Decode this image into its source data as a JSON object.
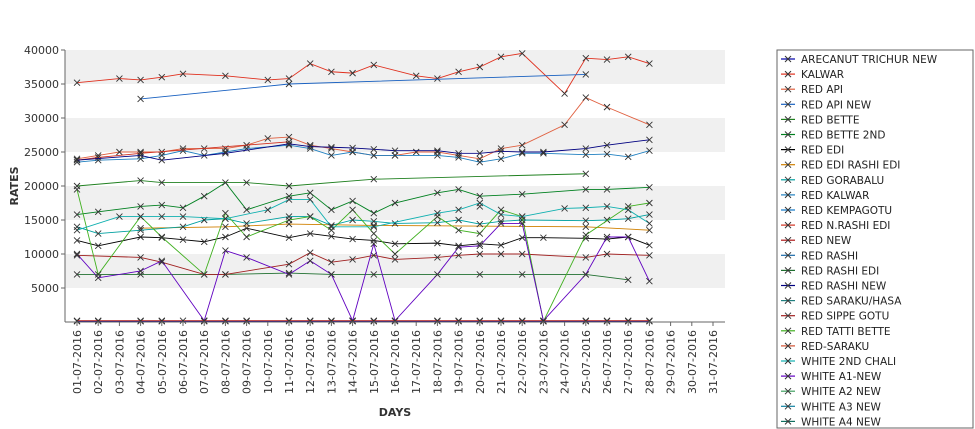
{
  "chart_data": {
    "type": "line",
    "xlabel": "DAYS",
    "ylabel": "RATES",
    "ylim": [
      0,
      40000
    ],
    "yticks": [
      5000,
      10000,
      15000,
      20000,
      25000,
      30000,
      35000,
      40000
    ],
    "grid": "alternating horizontal bands",
    "legend_position": "right",
    "categories": [
      "01-07-2016",
      "02-07-2016",
      "03-07-2016",
      "04-07-2016",
      "05-07-2016",
      "06-07-2016",
      "07-07-2016",
      "08-07-2016",
      "09-07-2016",
      "10-07-2016",
      "11-07-2016",
      "12-07-2016",
      "13-07-2016",
      "14-07-2016",
      "15-07-2016",
      "16-07-2016",
      "17-07-2016",
      "18-07-2016",
      "19-07-2016",
      "20-07-2016",
      "21-07-2016",
      "22-07-2016",
      "23-07-2016",
      "24-07-2016",
      "25-07-2016",
      "26-07-2016",
      "27-07-2016",
      "28-07-2016",
      "29-07-2016",
      "30-07-2016",
      "31-07-2016"
    ],
    "series": [
      {
        "name": "ARECANUT TRICHUR NEW",
        "color": "#0000a8",
        "values": [
          100,
          100,
          null,
          100,
          100,
          null,
          100,
          100,
          100,
          null,
          100,
          100,
          100,
          100,
          100,
          100,
          null,
          100,
          100,
          100,
          100,
          100,
          100,
          null,
          100,
          100,
          100,
          100,
          null,
          null,
          null
        ]
      },
      {
        "name": "KALWAR",
        "color": "#e0301e",
        "values": [
          35200,
          null,
          35800,
          35600,
          36000,
          36500,
          null,
          36200,
          null,
          35600,
          35800,
          38000,
          36800,
          36600,
          37800,
          null,
          36200,
          35800,
          36800,
          37500,
          39000,
          39500,
          null,
          33600,
          38800,
          38600,
          39000,
          38000,
          null,
          null,
          null
        ]
      },
      {
        "name": "RED API",
        "color": "#e06040",
        "values": [
          24000,
          24500,
          25000,
          25000,
          25000,
          25500,
          25500,
          25500,
          26000,
          27000,
          27200,
          26000,
          25500,
          25000,
          24500,
          24500,
          25000,
          25000,
          24500,
          24000,
          25500,
          26000,
          null,
          29000,
          33000,
          31600,
          null,
          29000,
          null,
          null,
          null
        ]
      },
      {
        "name": "RED API NEW",
        "color": "#1860c0",
        "values": [
          null,
          null,
          null,
          32800,
          null,
          null,
          null,
          null,
          null,
          null,
          35000,
          null,
          null,
          null,
          null,
          null,
          null,
          null,
          null,
          null,
          null,
          null,
          null,
          null,
          36400,
          null,
          null,
          null,
          null,
          null,
          null
        ]
      },
      {
        "name": "RED BETTE",
        "color": "#208020",
        "values": [
          20000,
          null,
          null,
          20800,
          20500,
          null,
          null,
          null,
          20500,
          null,
          20000,
          null,
          null,
          null,
          21000,
          null,
          null,
          null,
          null,
          null,
          null,
          null,
          null,
          null,
          21800,
          null,
          null,
          null,
          null,
          null,
          null
        ]
      },
      {
        "name": "RED BETTE 2ND",
        "color": "#008020",
        "values": [
          15800,
          16200,
          null,
          17000,
          17200,
          16800,
          18500,
          20500,
          16500,
          null,
          18500,
          19000,
          16500,
          17800,
          16000,
          17500,
          null,
          19000,
          19500,
          18500,
          null,
          18800,
          null,
          null,
          19500,
          19500,
          null,
          19800,
          null,
          null,
          null
        ]
      },
      {
        "name": "RED EDI",
        "color": "#000000",
        "values": [
          12000,
          11200,
          null,
          12500,
          12400,
          12100,
          11800,
          12500,
          13800,
          null,
          12400,
          13000,
          12600,
          12200,
          12000,
          11500,
          null,
          11600,
          11200,
          11500,
          11300,
          12400,
          12400,
          null,
          12300,
          12200,
          12500,
          11300,
          null,
          null,
          null
        ]
      },
      {
        "name": "RED EDI RASHI EDI",
        "color": "#d08000",
        "values": [
          null,
          null,
          null,
          13800,
          null,
          null,
          null,
          14000,
          null,
          null,
          14400,
          null,
          null,
          null,
          14200,
          null,
          null,
          null,
          null,
          null,
          null,
          null,
          null,
          null,
          14000,
          null,
          null,
          13500,
          null,
          null,
          null
        ]
      },
      {
        "name": "RED GORABALU",
        "color": "#00a0a0",
        "values": [
          14000,
          13000,
          null,
          13500,
          null,
          14000,
          15000,
          15200,
          14500,
          null,
          15500,
          15500,
          14200,
          15000,
          14800,
          14500,
          null,
          14600,
          15000,
          14400,
          14800,
          15000,
          null,
          null,
          14900,
          15000,
          15200,
          15800,
          null,
          null,
          null
        ]
      },
      {
        "name": "RED KALWAR",
        "color": "#2080c0",
        "values": [
          23500,
          23800,
          null,
          24000,
          24500,
          25200,
          24500,
          25000,
          25500,
          null,
          26000,
          25500,
          24500,
          25000,
          24500,
          24500,
          null,
          24500,
          24200,
          23500,
          24000,
          24800,
          24800,
          null,
          24600,
          24700,
          24300,
          25200,
          null,
          null,
          null
        ]
      },
      {
        "name": "RED KEMPAGOTU",
        "color": "#1078c8",
        "values": [
          null,
          null,
          null,
          null,
          null,
          null,
          null,
          null,
          null,
          null,
          null,
          null,
          null,
          null,
          null,
          null,
          null,
          null,
          null,
          17000,
          null,
          null,
          null,
          null,
          null,
          null,
          null,
          null,
          null,
          null,
          null
        ]
      },
      {
        "name": "RED N.RASHI EDI",
        "color": "#d03020",
        "values": [
          23800,
          24200,
          null,
          24800,
          null,
          null,
          null,
          null,
          null,
          null,
          26500,
          null,
          null,
          null,
          null,
          null,
          null,
          null,
          null,
          null,
          null,
          null,
          null,
          null,
          null,
          null,
          null,
          null,
          null,
          null,
          null
        ]
      },
      {
        "name": "RED NEW",
        "color": "#b01818",
        "values": [
          200,
          200,
          null,
          200,
          200,
          200,
          200,
          200,
          200,
          null,
          200,
          200,
          200,
          200,
          200,
          200,
          null,
          200,
          200,
          200,
          200,
          200,
          200,
          null,
          200,
          200,
          200,
          200,
          null,
          null,
          null
        ]
      },
      {
        "name": "RED RASHI",
        "color": "#1868a8",
        "values": [
          null,
          null,
          null,
          null,
          null,
          null,
          null,
          null,
          null,
          null,
          null,
          null,
          null,
          null,
          null,
          null,
          null,
          null,
          null,
          null,
          null,
          null,
          null,
          null,
          null,
          null,
          null,
          null,
          null,
          null,
          null
        ]
      },
      {
        "name": "RED RASHI EDI",
        "color": "#207030",
        "values": [
          7000,
          null,
          null,
          7000,
          null,
          null,
          null,
          7000,
          null,
          null,
          7200,
          null,
          7000,
          null,
          7000,
          null,
          null,
          null,
          null,
          7000,
          null,
          7000,
          null,
          null,
          7000,
          null,
          6200,
          null,
          null,
          null,
          null
        ]
      },
      {
        "name": "RED RASHI NEW",
        "color": "#000080",
        "values": [
          23800,
          null,
          null,
          24500,
          23800,
          null,
          null,
          24800,
          null,
          null,
          26200,
          25800,
          25700,
          25600,
          25400,
          25200,
          null,
          25200,
          24800,
          24800,
          25100,
          25000,
          25000,
          null,
          25500,
          26000,
          null,
          26800,
          null,
          null,
          null
        ]
      },
      {
        "name": "RED SARAKU/HASA",
        "color": "#208080",
        "values": [
          null,
          null,
          null,
          null,
          null,
          null,
          null,
          null,
          null,
          null,
          null,
          null,
          null,
          null,
          null,
          null,
          null,
          null,
          null,
          null,
          null,
          null,
          null,
          null,
          null,
          null,
          null,
          null,
          null,
          null,
          null
        ]
      },
      {
        "name": "RED SIPPE GOTU",
        "color": "#a02020",
        "values": [
          9800,
          null,
          null,
          9500,
          8800,
          null,
          7000,
          7000,
          null,
          null,
          8500,
          10200,
          8800,
          9200,
          9800,
          9200,
          null,
          9500,
          9800,
          10000,
          10000,
          10000,
          null,
          null,
          9500,
          10000,
          null,
          9800,
          null,
          null,
          null
        ]
      },
      {
        "name": "RED TATTI BETTE",
        "color": "#40b020",
        "values": [
          19500,
          7000,
          null,
          15500,
          12500,
          null,
          7000,
          16000,
          12500,
          null,
          15000,
          15500,
          13500,
          16500,
          13000,
          10000,
          null,
          15500,
          13500,
          13000,
          16500,
          15500,
          100,
          null,
          12800,
          null,
          17000,
          17500,
          null,
          null,
          null
        ]
      },
      {
        "name": "RED-SARAKU",
        "color": "#d05030",
        "values": [
          null,
          null,
          null,
          null,
          null,
          null,
          null,
          null,
          null,
          null,
          null,
          null,
          null,
          null,
          null,
          null,
          null,
          null,
          null,
          null,
          null,
          null,
          null,
          null,
          null,
          null,
          null,
          null,
          null,
          null,
          null
        ]
      },
      {
        "name": "WHITE 2ND CHALI",
        "color": "#10b0b0",
        "values": [
          13500,
          null,
          15500,
          15500,
          15500,
          15500,
          null,
          15200,
          null,
          16500,
          18000,
          18000,
          14000,
          null,
          14000,
          null,
          null,
          16000,
          16500,
          17500,
          15800,
          15500,
          null,
          16700,
          16800,
          17000,
          16500,
          14500,
          null,
          null,
          null
        ]
      },
      {
        "name": "WHITE A1-NEW",
        "color": "#6000c0",
        "values": [
          10000,
          6500,
          null,
          7500,
          9000,
          null,
          200,
          10500,
          9500,
          null,
          7000,
          9000,
          7000,
          200,
          11500,
          200,
          null,
          7000,
          11000,
          11200,
          14500,
          14500,
          200,
          null,
          7000,
          12500,
          12500,
          6000,
          null,
          null,
          null
        ]
      },
      {
        "name": "WHITE A2 NEW",
        "color": "#40a060",
        "values": [
          null,
          null,
          null,
          null,
          null,
          null,
          null,
          null,
          null,
          null,
          null,
          null,
          null,
          null,
          null,
          null,
          null,
          null,
          null,
          null,
          null,
          null,
          null,
          null,
          null,
          null,
          null,
          null,
          null,
          null,
          null
        ]
      },
      {
        "name": "WHITE A3 NEW",
        "color": "#1080a0",
        "values": [
          null,
          null,
          null,
          null,
          null,
          null,
          null,
          null,
          null,
          null,
          null,
          null,
          null,
          null,
          null,
          null,
          null,
          null,
          null,
          null,
          null,
          null,
          null,
          null,
          null,
          null,
          null,
          null,
          null,
          null,
          null
        ]
      },
      {
        "name": "WHITE A4 NEW",
        "color": "#107060",
        "values": [
          null,
          null,
          null,
          null,
          null,
          null,
          null,
          null,
          null,
          null,
          null,
          null,
          null,
          null,
          null,
          null,
          null,
          null,
          null,
          null,
          null,
          null,
          null,
          null,
          null,
          null,
          null,
          null,
          null,
          null,
          null
        ]
      }
    ]
  }
}
